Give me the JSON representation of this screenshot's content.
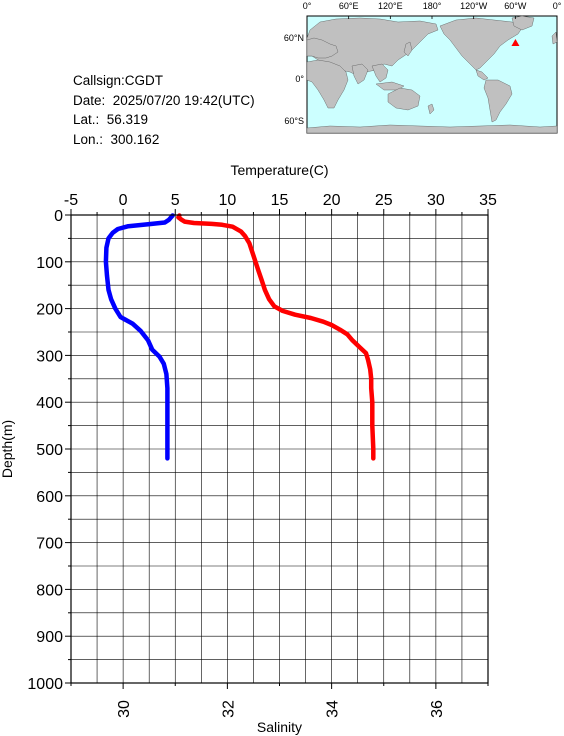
{
  "info": {
    "callsign": "Callsign:CGDT",
    "date": "Date:  2025/07/20 19:42(UTC)",
    "lat": "Lat.:  56.319",
    "lon": "Lon.:  300.162"
  },
  "map": {
    "lon_labels": [
      "0°",
      "60°E",
      "120°E",
      "180°",
      "120°W",
      "60°W",
      "0°"
    ],
    "lat_labels": [
      "60°N",
      "0°",
      "60°S"
    ],
    "ocean_color": "#ccffff",
    "land_color": "#c0c0c0",
    "marker_color": "#ff0000",
    "marker": {
      "lat": 56.319,
      "lon": 300.162
    }
  },
  "chart_data": {
    "type": "line",
    "ylabel": "Depth(m)",
    "top_xlabel": "Temperature(C)",
    "bottom_xlabel": "Salinity",
    "ylim": [
      0,
      1000
    ],
    "yticks": [
      0,
      100,
      200,
      300,
      400,
      500,
      600,
      700,
      800,
      900,
      1000
    ],
    "temperature_lim": [
      -5,
      35
    ],
    "temperature_ticks": [
      -5,
      0,
      5,
      10,
      15,
      20,
      25,
      30,
      35
    ],
    "salinity_lim": [
      29,
      37
    ],
    "salinity_ticks": [
      30,
      32,
      34,
      36
    ],
    "grid": true,
    "series": [
      {
        "key": "temperature",
        "color": "#ff0000",
        "points": [
          [
            5.4,
            1
          ],
          [
            5.3,
            5
          ],
          [
            5.6,
            10
          ],
          [
            5.9,
            14
          ],
          [
            6.8,
            17
          ],
          [
            8.5,
            19
          ],
          [
            9.5,
            21
          ],
          [
            10.5,
            25
          ],
          [
            11.3,
            35
          ],
          [
            11.7,
            45
          ],
          [
            12.1,
            60
          ],
          [
            12.4,
            80
          ],
          [
            12.7,
            100
          ],
          [
            13.0,
            120
          ],
          [
            13.3,
            140
          ],
          [
            13.6,
            160
          ],
          [
            14.0,
            180
          ],
          [
            14.5,
            195
          ],
          [
            15.3,
            205
          ],
          [
            16.5,
            213
          ],
          [
            18.0,
            220
          ],
          [
            19.2,
            228
          ],
          [
            20.0,
            235
          ],
          [
            20.8,
            245
          ],
          [
            21.5,
            255
          ],
          [
            22.0,
            268
          ],
          [
            22.7,
            283
          ],
          [
            23.3,
            295
          ],
          [
            23.5,
            310
          ],
          [
            23.7,
            330
          ],
          [
            23.8,
            350
          ],
          [
            23.8,
            370
          ],
          [
            23.9,
            400
          ],
          [
            23.9,
            450
          ],
          [
            24.0,
            500
          ],
          [
            24.0,
            520
          ]
        ]
      },
      {
        "key": "salinity",
        "color": "#0000ff",
        "points": [
          [
            30.95,
            1
          ],
          [
            30.88,
            10
          ],
          [
            30.8,
            16
          ],
          [
            30.55,
            19
          ],
          [
            30.1,
            24
          ],
          [
            29.9,
            30
          ],
          [
            29.8,
            38
          ],
          [
            29.72,
            50
          ],
          [
            29.68,
            70
          ],
          [
            29.67,
            100
          ],
          [
            29.69,
            130
          ],
          [
            29.72,
            160
          ],
          [
            29.77,
            180
          ],
          [
            29.85,
            200
          ],
          [
            29.95,
            218
          ],
          [
            30.18,
            232
          ],
          [
            30.34,
            248
          ],
          [
            30.48,
            268
          ],
          [
            30.56,
            288
          ],
          [
            30.7,
            303
          ],
          [
            30.78,
            318
          ],
          [
            30.83,
            340
          ],
          [
            30.85,
            370
          ],
          [
            30.85,
            400
          ],
          [
            30.85,
            450
          ],
          [
            30.85,
            520
          ]
        ]
      }
    ]
  }
}
